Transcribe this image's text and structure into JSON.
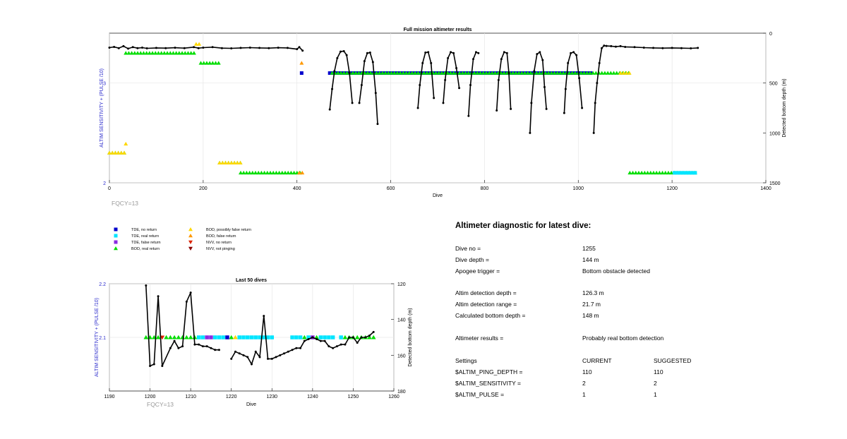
{
  "chart_data": [
    {
      "type": "scatter",
      "title": "Full mission altimeter results",
      "xlabel": "Dive",
      "ylabel": "ALTIM SENSITIVITY + (PULSE /10)",
      "ylabel_right": "Detected bottom depth (m)",
      "xlim": [
        0,
        1400
      ],
      "ylim": [
        2,
        3.5
      ],
      "ylim_right": [
        1500,
        0
      ],
      "xticks": [
        "0",
        "200",
        "400",
        "600",
        "800",
        "1000",
        "1200",
        "1400"
      ],
      "yticks_left": [
        "2",
        "3"
      ],
      "yticks_right": [
        "0",
        "500",
        "1000",
        "1500"
      ],
      "grid": true,
      "footnote": "FQCY=13",
      "depth_series": [
        [
          [
            0,
            145
          ],
          [
            10,
            138
          ],
          [
            20,
            150
          ],
          [
            30,
            130
          ],
          [
            40,
            155
          ],
          [
            50,
            140
          ],
          [
            60,
            150
          ],
          [
            70,
            145
          ],
          [
            80,
            152
          ],
          [
            100,
            148
          ],
          [
            120,
            150
          ],
          [
            140,
            146
          ],
          [
            160,
            150
          ],
          [
            180,
            140
          ],
          [
            190,
            150
          ],
          [
            200,
            145
          ],
          [
            220,
            140
          ],
          [
            240,
            150
          ],
          [
            260,
            152
          ],
          [
            280,
            148
          ],
          [
            300,
            145
          ],
          [
            320,
            148
          ],
          [
            340,
            150
          ],
          [
            360,
            146
          ],
          [
            380,
            148
          ],
          [
            400,
            160
          ],
          [
            405,
            140
          ],
          [
            412,
            175
          ]
        ],
        [
          [
            470,
            765
          ],
          [
            475,
            560
          ],
          [
            480,
            380
          ],
          [
            486,
            250
          ],
          [
            493,
            185
          ],
          [
            500,
            180
          ],
          [
            506,
            220
          ],
          [
            512,
            400
          ],
          [
            518,
            700
          ]
        ],
        [
          [
            533,
            700
          ],
          [
            538,
            520
          ],
          [
            544,
            280
          ],
          [
            550,
            200
          ],
          [
            556,
            195
          ],
          [
            562,
            290
          ],
          [
            568,
            600
          ],
          [
            572,
            910
          ]
        ],
        [
          [
            658,
            750
          ],
          [
            662,
            520
          ],
          [
            668,
            300
          ],
          [
            674,
            195
          ],
          [
            680,
            190
          ],
          [
            686,
            300
          ],
          [
            692,
            650
          ]
        ],
        [
          [
            712,
            700
          ],
          [
            716,
            470
          ],
          [
            722,
            250
          ],
          [
            728,
            190
          ],
          [
            734,
            200
          ],
          [
            740,
            350
          ],
          [
            746,
            550
          ]
        ],
        [
          [
            766,
            830
          ],
          [
            770,
            520
          ],
          [
            776,
            260
          ],
          [
            782,
            190
          ],
          [
            787,
            200
          ]
        ],
        [
          [
            826,
            775
          ],
          [
            830,
            470
          ],
          [
            836,
            260
          ],
          [
            842,
            190
          ],
          [
            848,
            200
          ],
          [
            852,
            400
          ],
          [
            856,
            760
          ]
        ],
        [
          [
            897,
            1000
          ],
          [
            900,
            700
          ],
          [
            906,
            380
          ],
          [
            912,
            210
          ],
          [
            918,
            190
          ],
          [
            924,
            270
          ],
          [
            928,
            540
          ],
          [
            932,
            760
          ]
        ],
        [
          [
            970,
            800
          ],
          [
            973,
            560
          ],
          [
            978,
            300
          ],
          [
            984,
            200
          ],
          [
            990,
            190
          ],
          [
            996,
            220
          ],
          [
            1002,
            450
          ],
          [
            1008,
            750
          ]
        ],
        [
          [
            1033,
            1000
          ],
          [
            1036,
            700
          ],
          [
            1040,
            500
          ],
          [
            1045,
            300
          ],
          [
            1050,
            150
          ],
          [
            1055,
            125
          ],
          [
            1060,
            128
          ],
          [
            1070,
            130
          ],
          [
            1080,
            135
          ],
          [
            1090,
            130
          ],
          [
            1100,
            138
          ],
          [
            1120,
            140
          ],
          [
            1140,
            145
          ],
          [
            1160,
            148
          ],
          [
            1180,
            150
          ],
          [
            1200,
            148
          ],
          [
            1220,
            150
          ],
          [
            1240,
            152
          ],
          [
            1255,
            148
          ]
        ]
      ],
      "marker_runs": [
        {
          "kind": "BOD, real return",
          "x": [
            0,
            35
          ],
          "y": 2.3
        },
        {
          "kind": "BOD, possibly false return",
          "x": [
            0,
            35
          ],
          "y": 2.3
        },
        {
          "kind": "BOD, possibly false return",
          "x": [
            35,
            35
          ],
          "y": 2.39
        },
        {
          "kind": "BOD, real return",
          "x": [
            35,
            185
          ],
          "y": 3.3
        },
        {
          "kind": "BOD, possibly false return",
          "x": [
            185,
            195
          ],
          "y": 3.39
        },
        {
          "kind": "BOD, real return",
          "x": [
            195,
            235
          ],
          "y": 3.2
        },
        {
          "kind": "BOD, real return",
          "x": [
            235,
            280
          ],
          "y": 2.2
        },
        {
          "kind": "BOD, possibly false return",
          "x": [
            235,
            280
          ],
          "y": 2.2
        },
        {
          "kind": "BOD, real return",
          "x": [
            280,
            410
          ],
          "y": 2.1
        },
        {
          "kind": "BOD, false return",
          "x": [
            405,
            415
          ],
          "y": 2.1
        },
        {
          "kind": "BOD, false return",
          "x": [
            410,
            410
          ],
          "y": 3.2
        },
        {
          "kind": "TDE, no return",
          "x": [
            410,
            410
          ],
          "y": 3.1
        },
        {
          "kind": "TDE, no return",
          "x": [
            470,
            1030
          ],
          "y": 3.1
        },
        {
          "kind": "BOD, real return",
          "x": [
            475,
            1110
          ],
          "y": 3.1
        },
        {
          "kind": "BOD, possibly false return",
          "x": [
            1090,
            1115
          ],
          "y": 3.1
        },
        {
          "kind": "BOD, real return",
          "x": [
            1110,
            1255
          ],
          "y": 2.1
        },
        {
          "kind": "TDE, real return",
          "x": [
            1205,
            1250
          ],
          "y": 2.1
        }
      ]
    },
    {
      "type": "scatter",
      "title": "Last 50 dives",
      "xlabel": "Dive",
      "ylabel": "ALTIM SENSITIVITY + (PULSE /10)",
      "ylabel_right": "Detected bottom depth (m)",
      "xlim": [
        1190,
        1260
      ],
      "ylim": [
        2.0,
        2.2
      ],
      "ylim_right": [
        180,
        120
      ],
      "xticks": [
        "1190",
        "1200",
        "1210",
        "1220",
        "1230",
        "1240",
        "1250",
        "1260"
      ],
      "yticks_left": [
        "2.1",
        "2.2"
      ],
      "yticks_right": [
        "120",
        "140",
        "160",
        "180"
      ],
      "grid": true,
      "footnote": "FQCY=13",
      "depth_series": [
        [
          [
            1199,
            121
          ],
          [
            1200,
            166
          ],
          [
            1201,
            165
          ],
          [
            1202,
            127
          ],
          [
            1203,
            166
          ],
          [
            1205,
            156
          ],
          [
            1206,
            152
          ],
          [
            1207,
            156
          ],
          [
            1208,
            155
          ],
          [
            1209,
            130
          ],
          [
            1210,
            125
          ],
          [
            1211,
            154
          ],
          [
            1212,
            154
          ],
          [
            1213,
            155
          ],
          [
            1214,
            155
          ],
          [
            1215,
            156
          ],
          [
            1216,
            157
          ],
          [
            1217,
            157
          ]
        ],
        [
          [
            1220,
            162
          ],
          [
            1221,
            158
          ],
          [
            1222,
            159
          ],
          [
            1223,
            160
          ],
          [
            1224,
            161
          ],
          [
            1225,
            165
          ],
          [
            1226,
            158
          ],
          [
            1227,
            161
          ],
          [
            1228,
            138
          ],
          [
            1229,
            162
          ],
          [
            1230,
            162
          ],
          [
            1231,
            161
          ],
          [
            1232,
            160
          ],
          [
            1233,
            159
          ],
          [
            1234,
            158
          ],
          [
            1235,
            157
          ],
          [
            1236,
            156
          ],
          [
            1237,
            156
          ],
          [
            1238,
            152
          ],
          [
            1239,
            151
          ],
          [
            1240,
            150
          ],
          [
            1241,
            151
          ],
          [
            1242,
            152
          ],
          [
            1243,
            152
          ],
          [
            1244,
            155
          ],
          [
            1245,
            156
          ],
          [
            1246,
            155
          ],
          [
            1247,
            154
          ],
          [
            1248,
            154
          ],
          [
            1249,
            150
          ],
          [
            1250,
            150
          ],
          [
            1251,
            153
          ],
          [
            1252,
            150
          ],
          [
            1253,
            150
          ],
          [
            1254,
            149
          ],
          [
            1255,
            147
          ]
        ]
      ],
      "markers": [
        {
          "kind": "BOD, real return",
          "dives": [
            1199,
            1200,
            1201,
            1202,
            1204,
            1205,
            1206,
            1207,
            1208,
            1209,
            1210,
            1211,
            1220,
            1238,
            1241,
            1248,
            1249,
            1250,
            1251,
            1252,
            1253,
            1254,
            1255
          ]
        },
        {
          "kind": "NVV, no return",
          "dives": [
            1203
          ]
        },
        {
          "kind": "TDE, real return",
          "dives": [
            1212,
            1213,
            1216,
            1217,
            1218,
            1222,
            1223,
            1224,
            1225,
            1226,
            1227,
            1228,
            1229,
            1230,
            1235,
            1236,
            1237,
            1239,
            1242,
            1243,
            1244,
            1245,
            1247
          ]
        },
        {
          "kind": "TDE, false return",
          "dives": [
            1214,
            1215,
            1240
          ]
        },
        {
          "kind": "TDE, no return",
          "dives": [
            1219
          ]
        },
        {
          "kind": "BOD, possibly false return",
          "dives": [
            1221
          ]
        }
      ]
    }
  ],
  "legend": [
    {
      "label": "TDE, no return",
      "color": "#0000cc",
      "shape": "square"
    },
    {
      "label": "TDE, real return",
      "color": "#00e5ff",
      "shape": "square"
    },
    {
      "label": "TDE, false return",
      "color": "#8a2be2",
      "shape": "square"
    },
    {
      "label": "BOD, real return",
      "color": "#00dd00",
      "shape": "triangle-up"
    },
    {
      "label": "BOD, possibly false return",
      "color": "#ffd700",
      "shape": "triangle-up"
    },
    {
      "label": "BOD, false return",
      "color": "#ff9900",
      "shape": "triangle-up"
    },
    {
      "label": "NVV, no return",
      "color": "#dd2200",
      "shape": "triangle-down"
    },
    {
      "label": "NVV, not pinging",
      "color": "#8b0000",
      "shape": "triangle-down"
    }
  ],
  "diagnostic": {
    "title": "Altimeter diagnostic for latest dive:",
    "rows": [
      {
        "label": "Dive no =",
        "value": "1255"
      },
      {
        "label": "Dive depth =",
        "value": "144 m"
      },
      {
        "label": "Apogee trigger =",
        "value": "Bottom obstacle detected"
      },
      {
        "label": "Altim detection depth =",
        "value": "126.3 m"
      },
      {
        "label": "Altim detection range =",
        "value": "21.7 m"
      },
      {
        "label": "Calculated bottom depth =",
        "value": "148 m"
      },
      {
        "label": "Altimeter results =",
        "value": "Probably real bottom detection"
      }
    ],
    "settings_header": {
      "label": "Settings",
      "current": "CURRENT",
      "suggested": "SUGGESTED"
    },
    "settings": [
      {
        "label": "$ALTIM_PING_DEPTH =",
        "current": "110",
        "suggested": "110"
      },
      {
        "label": "$ALTIM_SENSITIVITY =",
        "current": "2",
        "suggested": "2"
      },
      {
        "label": "$ALTIM_PULSE =",
        "current": "1",
        "suggested": "1"
      }
    ]
  }
}
